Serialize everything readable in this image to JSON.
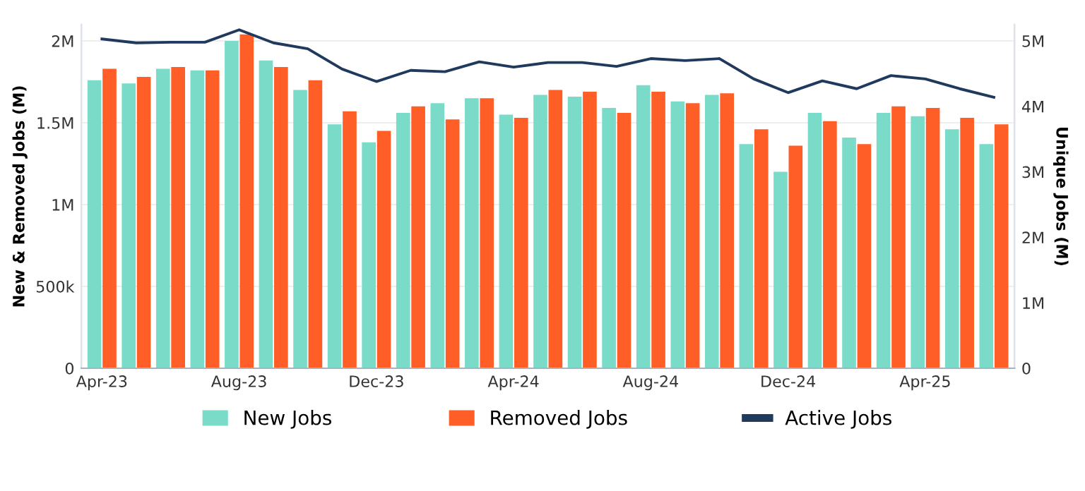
{
  "chart_data": {
    "type": "bar",
    "categories": [
      "Apr-23",
      null,
      null,
      null,
      "Aug-23",
      null,
      null,
      null,
      "Dec-23",
      null,
      null,
      null,
      "Apr-24",
      null,
      null,
      null,
      "Aug-24",
      null,
      null,
      null,
      "Dec-24",
      null,
      null,
      null,
      "Apr-25",
      null,
      null
    ],
    "series": [
      {
        "name": "New Jobs",
        "color": "#7adcc8",
        "values": [
          1760000,
          1740000,
          1830000,
          1820000,
          2000000,
          1880000,
          1700000,
          1490000,
          1380000,
          1560000,
          1620000,
          1650000,
          1550000,
          1670000,
          1660000,
          1590000,
          1730000,
          1630000,
          1670000,
          1370000,
          1200000,
          1560000,
          1410000,
          1560000,
          1540000,
          1460000,
          1370000
        ]
      },
      {
        "name": "Removed Jobs",
        "color": "#ff5f27",
        "values": [
          1830000,
          1780000,
          1840000,
          1820000,
          2040000,
          1840000,
          1760000,
          1570000,
          1450000,
          1600000,
          1520000,
          1650000,
          1530000,
          1700000,
          1690000,
          1560000,
          1690000,
          1620000,
          1680000,
          1460000,
          1360000,
          1510000,
          1370000,
          1600000,
          1590000,
          1530000,
          1490000
        ]
      },
      {
        "name": "Active Jobs",
        "type": "line",
        "axis": "y2",
        "color": "#1f3a5c",
        "values": [
          5030000,
          4970000,
          4980000,
          4980000,
          5170000,
          4970000,
          4880000,
          4570000,
          4380000,
          4550000,
          4530000,
          4680000,
          4600000,
          4670000,
          4670000,
          4610000,
          4730000,
          4700000,
          4730000,
          4420000,
          4210000,
          4390000,
          4270000,
          4470000,
          4420000,
          4270000,
          4140000
        ]
      }
    ],
    "ylabel": "New & Removed Jobs (M)",
    "y2label": "Unique Jobs (M)",
    "ylim": [
      0,
      2100000
    ],
    "yticks": [
      0,
      {
        "value": 500000,
        "label": "500k"
      },
      {
        "value": 1000000,
        "label": "1M"
      },
      {
        "value": 1500000,
        "label": "1.5M"
      },
      {
        "value": 2000000,
        "label": "2M"
      }
    ],
    "y2lim": [
      0,
      5250000
    ],
    "y2ticks": [
      0,
      {
        "value": 1000000,
        "label": "1M"
      },
      {
        "value": 2000000,
        "label": "2M"
      },
      {
        "value": 3000000,
        "label": "3M"
      },
      {
        "value": 4000000,
        "label": "4M"
      },
      {
        "value": 5000000,
        "label": "5M"
      }
    ],
    "grid": "y",
    "legend": "bottom"
  }
}
